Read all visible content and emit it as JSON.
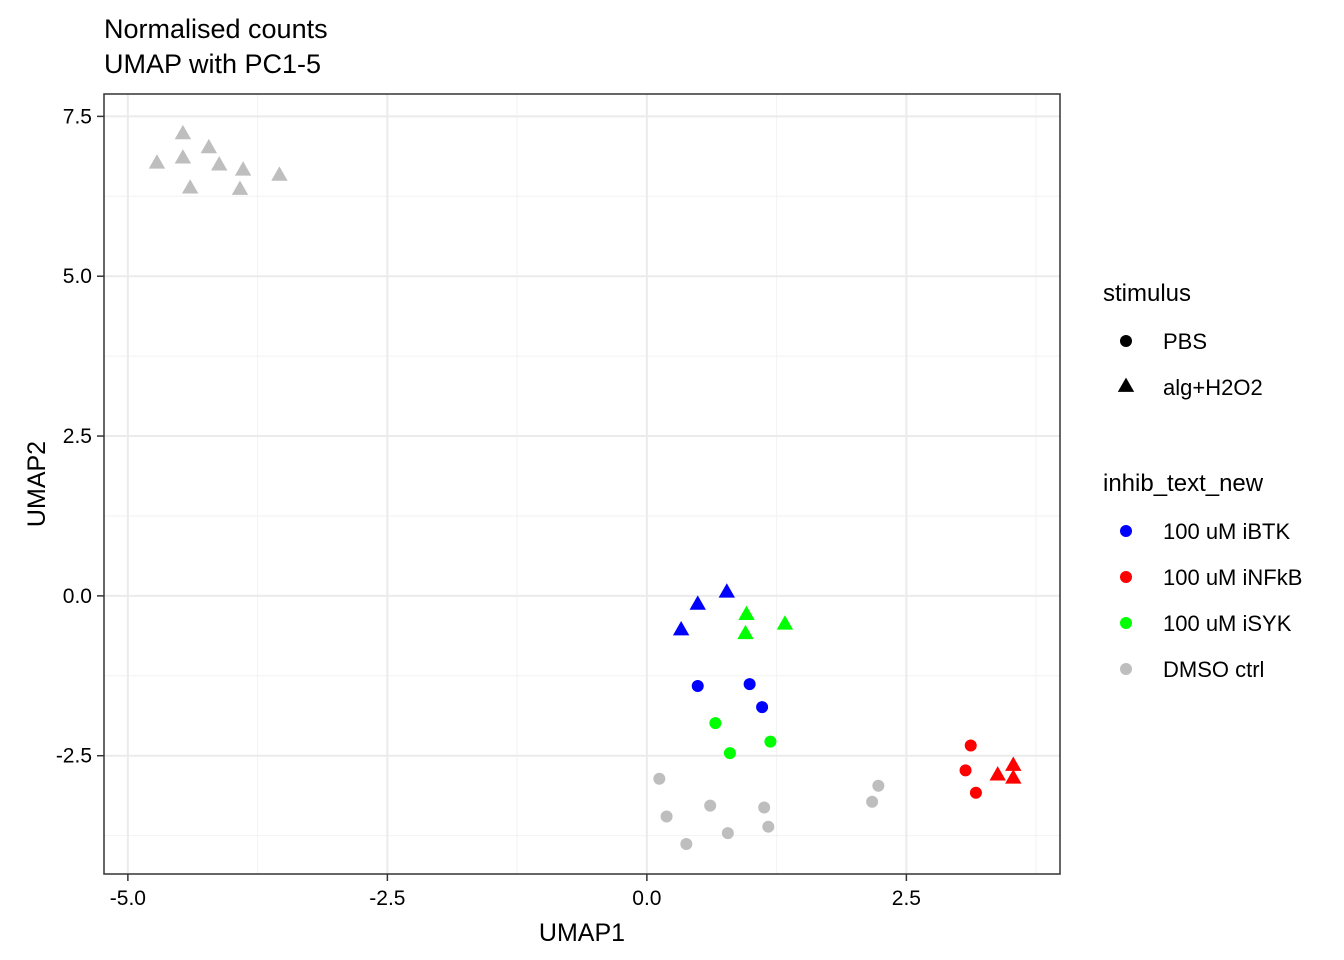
{
  "chart_data": {
    "type": "scatter",
    "title": "Normalised counts",
    "subtitle": "UMAP with PC1-5",
    "xlabel": "UMAP1",
    "ylabel": "UMAP2",
    "xlim": [
      -5.23,
      3.98
    ],
    "ylim": [
      -4.35,
      7.85
    ],
    "x_ticks": [
      {
        "value": -5.0,
        "label": "-5.0"
      },
      {
        "value": -2.5,
        "label": "-2.5"
      },
      {
        "value": 0.0,
        "label": "0.0"
      },
      {
        "value": 2.5,
        "label": "2.5"
      }
    ],
    "y_ticks": [
      {
        "value": -2.5,
        "label": "-2.5"
      },
      {
        "value": 0.0,
        "label": "0.0"
      },
      {
        "value": 2.5,
        "label": "2.5"
      },
      {
        "value": 5.0,
        "label": "5.0"
      },
      {
        "value": 7.5,
        "label": "7.5"
      }
    ],
    "grid": true,
    "legend_position": "right",
    "legends": [
      {
        "title": "stimulus",
        "entries": [
          {
            "label": "PBS",
            "shape": "circle",
            "color": "#000000"
          },
          {
            "label": "alg+H2O2",
            "shape": "triangle",
            "color": "#000000"
          }
        ]
      },
      {
        "title": "inhib_text_new",
        "entries": [
          {
            "label": "100 uM iBTK",
            "shape": "circle",
            "color": "#0000FF"
          },
          {
            "label": "100 uM iNFkB",
            "shape": "circle",
            "color": "#FF0000"
          },
          {
            "label": "100 uM iSYK",
            "shape": "circle",
            "color": "#00FF00"
          },
          {
            "label": "DMSO ctrl",
            "shape": "circle",
            "color": "#BEBEBE"
          }
        ]
      }
    ],
    "colors": {
      "100 uM iBTK": "#0000FF",
      "100 uM iNFkB": "#FF0000",
      "100 uM iSYK": "#00FF00",
      "DMSO ctrl": "#BEBEBE"
    },
    "points": [
      {
        "x": -4.47,
        "y": 7.22,
        "stimulus": "alg+H2O2",
        "inhib": "DMSO ctrl"
      },
      {
        "x": -4.22,
        "y": 7.0,
        "stimulus": "alg+H2O2",
        "inhib": "DMSO ctrl"
      },
      {
        "x": -4.72,
        "y": 6.76,
        "stimulus": "alg+H2O2",
        "inhib": "DMSO ctrl"
      },
      {
        "x": -4.47,
        "y": 6.84,
        "stimulus": "alg+H2O2",
        "inhib": "DMSO ctrl"
      },
      {
        "x": -4.12,
        "y": 6.73,
        "stimulus": "alg+H2O2",
        "inhib": "DMSO ctrl"
      },
      {
        "x": -3.89,
        "y": 6.65,
        "stimulus": "alg+H2O2",
        "inhib": "DMSO ctrl"
      },
      {
        "x": -3.54,
        "y": 6.57,
        "stimulus": "alg+H2O2",
        "inhib": "DMSO ctrl"
      },
      {
        "x": -4.4,
        "y": 6.37,
        "stimulus": "alg+H2O2",
        "inhib": "DMSO ctrl"
      },
      {
        "x": -3.92,
        "y": 6.35,
        "stimulus": "alg+H2O2",
        "inhib": "DMSO ctrl"
      },
      {
        "x": 0.77,
        "y": 0.05,
        "stimulus": "alg+H2O2",
        "inhib": "100 uM iBTK"
      },
      {
        "x": 0.49,
        "y": -0.14,
        "stimulus": "alg+H2O2",
        "inhib": "100 uM iBTK"
      },
      {
        "x": 0.33,
        "y": -0.54,
        "stimulus": "alg+H2O2",
        "inhib": "100 uM iBTK"
      },
      {
        "x": 0.96,
        "y": -0.3,
        "stimulus": "alg+H2O2",
        "inhib": "100 uM iSYK"
      },
      {
        "x": 0.95,
        "y": -0.6,
        "stimulus": "alg+H2O2",
        "inhib": "100 uM iSYK"
      },
      {
        "x": 1.33,
        "y": -0.45,
        "stimulus": "alg+H2O2",
        "inhib": "100 uM iSYK"
      },
      {
        "x": 3.53,
        "y": -2.66,
        "stimulus": "alg+H2O2",
        "inhib": "100 uM iNFkB"
      },
      {
        "x": 3.38,
        "y": -2.81,
        "stimulus": "alg+H2O2",
        "inhib": "100 uM iNFkB"
      },
      {
        "x": 3.53,
        "y": -2.86,
        "stimulus": "alg+H2O2",
        "inhib": "100 uM iNFkB"
      },
      {
        "x": 0.49,
        "y": -1.41,
        "stimulus": "PBS",
        "inhib": "100 uM iBTK"
      },
      {
        "x": 0.99,
        "y": -1.38,
        "stimulus": "PBS",
        "inhib": "100 uM iBTK"
      },
      {
        "x": 1.11,
        "y": -1.74,
        "stimulus": "PBS",
        "inhib": "100 uM iBTK"
      },
      {
        "x": 0.66,
        "y": -1.99,
        "stimulus": "PBS",
        "inhib": "100 uM iSYK"
      },
      {
        "x": 1.19,
        "y": -2.28,
        "stimulus": "PBS",
        "inhib": "100 uM iSYK"
      },
      {
        "x": 0.8,
        "y": -2.46,
        "stimulus": "PBS",
        "inhib": "100 uM iSYK"
      },
      {
        "x": 3.12,
        "y": -2.34,
        "stimulus": "PBS",
        "inhib": "100 uM iNFkB"
      },
      {
        "x": 3.07,
        "y": -2.73,
        "stimulus": "PBS",
        "inhib": "100 uM iNFkB"
      },
      {
        "x": 3.17,
        "y": -3.08,
        "stimulus": "PBS",
        "inhib": "100 uM iNFkB"
      },
      {
        "x": 0.12,
        "y": -2.86,
        "stimulus": "PBS",
        "inhib": "DMSO ctrl"
      },
      {
        "x": 0.19,
        "y": -3.45,
        "stimulus": "PBS",
        "inhib": "DMSO ctrl"
      },
      {
        "x": 0.61,
        "y": -3.28,
        "stimulus": "PBS",
        "inhib": "DMSO ctrl"
      },
      {
        "x": 0.38,
        "y": -3.88,
        "stimulus": "PBS",
        "inhib": "DMSO ctrl"
      },
      {
        "x": 0.78,
        "y": -3.71,
        "stimulus": "PBS",
        "inhib": "DMSO ctrl"
      },
      {
        "x": 1.13,
        "y": -3.31,
        "stimulus": "PBS",
        "inhib": "DMSO ctrl"
      },
      {
        "x": 1.17,
        "y": -3.61,
        "stimulus": "PBS",
        "inhib": "DMSO ctrl"
      },
      {
        "x": 2.23,
        "y": -2.97,
        "stimulus": "PBS",
        "inhib": "DMSO ctrl"
      },
      {
        "x": 2.17,
        "y": -3.22,
        "stimulus": "PBS",
        "inhib": "DMSO ctrl"
      }
    ]
  }
}
